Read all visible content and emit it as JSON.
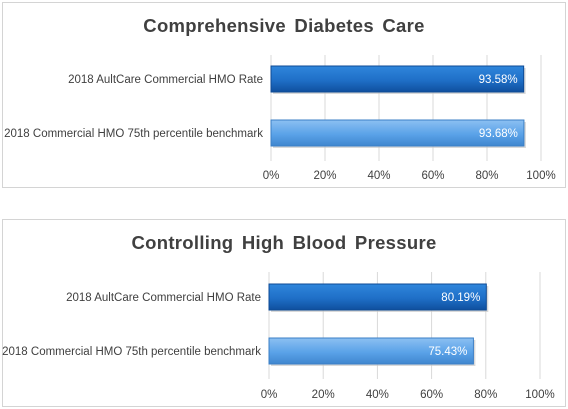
{
  "colors": {
    "series_dark": "#1f6fc7",
    "series_light": "#5aa2e8",
    "gridline": "#d9d9d9",
    "axis_text": "#404040",
    "label_text": "#ffffff"
  },
  "chart_data": [
    {
      "type": "bar",
      "orientation": "horizontal",
      "title": "Comprehensive Diabetes Care",
      "categories": [
        "2018 AultCare Commercial HMO Rate",
        "2018 Commercial HMO 75th percentile benchmark"
      ],
      "values": [
        93.58,
        93.68
      ],
      "data_labels": [
        "93.58%",
        "93.68%"
      ],
      "xlim": [
        0,
        100
      ],
      "x_ticks": [
        0,
        20,
        40,
        60,
        80,
        100
      ],
      "x_tick_labels": [
        "0%",
        "20%",
        "40%",
        "60%",
        "80%",
        "100%"
      ],
      "grid": "vertical",
      "legend": "none"
    },
    {
      "type": "bar",
      "orientation": "horizontal",
      "title": "Controlling High Blood Pressure",
      "categories": [
        "2018 AultCare Commercial HMO Rate",
        "2018 Commercial HMO 75th percentile benchmark"
      ],
      "values": [
        80.19,
        75.43
      ],
      "data_labels": [
        "80.19%",
        "75.43%"
      ],
      "xlim": [
        0,
        100
      ],
      "x_ticks": [
        0,
        20,
        40,
        60,
        80,
        100
      ],
      "x_tick_labels": [
        "0%",
        "20%",
        "40%",
        "60%",
        "80%",
        "100%"
      ],
      "grid": "vertical",
      "legend": "none"
    }
  ]
}
